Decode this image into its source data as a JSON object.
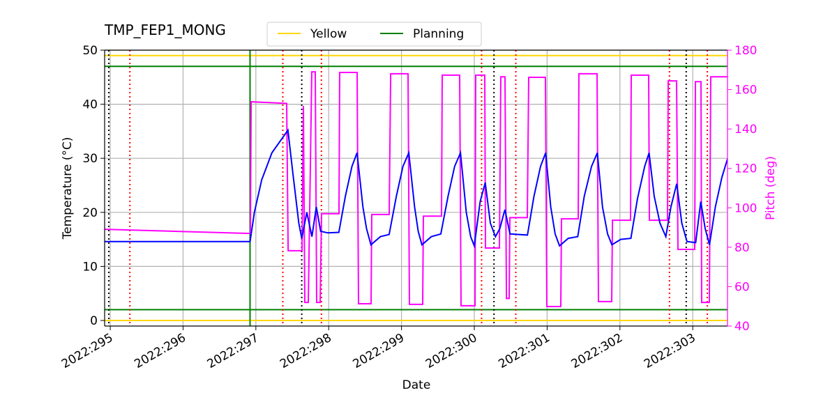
{
  "chart_data": {
    "type": "line",
    "title": "TMP_FEP1_MONG",
    "x_label": "Date",
    "y_label": "Temperature (°C)",
    "y2_label": "Pitch (deg)",
    "xlim": [
      294.923,
      303.477
    ],
    "xticks": [
      {
        "value": 295,
        "label": "2022:295"
      },
      {
        "value": 296,
        "label": "2022:296"
      },
      {
        "value": 297,
        "label": "2022:297"
      },
      {
        "value": 298,
        "label": "2022:298"
      },
      {
        "value": 299,
        "label": "2022:299"
      },
      {
        "value": 300,
        "label": "2022:300"
      },
      {
        "value": 301,
        "label": "2022:301"
      },
      {
        "value": 302,
        "label": "2022:302"
      },
      {
        "value": 303,
        "label": "2022:303"
      }
    ],
    "ylim": [
      -1.03,
      50
    ],
    "yticks": [
      0,
      10,
      20,
      30,
      40,
      50
    ],
    "y2lim": [
      40,
      180
    ],
    "y2ticks": [
      40,
      60,
      80,
      100,
      120,
      140,
      160,
      180
    ],
    "grid": true,
    "legend": "upper center",
    "series": [
      {
        "name": "Yellow",
        "color": "#ffd700",
        "values": [
          0,
          49
        ]
      },
      {
        "name": "Planning",
        "color": "#008000",
        "values": [
          2,
          47
        ]
      }
    ],
    "vlines": [
      {
        "color": "#008000",
        "style": "solid",
        "x": [
          296.92
        ]
      },
      {
        "color": "#000000",
        "style": "dotted",
        "x": [
          294.98,
          297.63,
          300.27,
          302.91
        ]
      },
      {
        "color": "#ff0000",
        "style": "dotted",
        "x": [
          295.27,
          297.37,
          297.9,
          300.1,
          300.57,
          302.68,
          303.2
        ]
      }
    ],
    "temperature": {
      "color": "#0000ff",
      "x": [
        294.92,
        296.92,
        296.98,
        297.08,
        297.22,
        297.44,
        297.51,
        297.59,
        297.63,
        297.7,
        297.77,
        297.83,
        297.89,
        297.99,
        298.14,
        298.23,
        298.32,
        298.39,
        298.47,
        298.52,
        298.58,
        298.71,
        298.83,
        298.93,
        299.02,
        299.1,
        299.18,
        299.23,
        299.28,
        299.41,
        299.54,
        299.64,
        299.73,
        299.81,
        299.89,
        299.95,
        300.0,
        300.08,
        300.15,
        300.22,
        300.29,
        300.35,
        300.42,
        300.49,
        300.73,
        300.82,
        300.91,
        300.98,
        301.05,
        301.11,
        301.17,
        301.29,
        301.42,
        301.51,
        301.61,
        301.69,
        301.76,
        301.83,
        301.89,
        302.01,
        302.15,
        302.24,
        302.34,
        302.4,
        302.47,
        302.55,
        302.63,
        302.7,
        302.78,
        302.85,
        302.92,
        303.04,
        303.11,
        303.17,
        303.23,
        303.31,
        303.4,
        303.48
      ],
      "values": [
        14.6,
        14.6,
        20,
        26,
        31,
        35.2,
        27,
        18,
        15.2,
        20,
        15.5,
        21,
        16.5,
        16.2,
        16.3,
        23,
        28.5,
        31,
        21,
        17,
        14,
        15.5,
        15.9,
        23,
        28.5,
        31,
        21,
        16.5,
        14,
        15.5,
        16,
        23,
        28.5,
        31,
        20,
        15.5,
        13.8,
        22,
        25.5,
        18,
        15.5,
        17,
        20.5,
        16,
        15.8,
        23,
        28.5,
        31,
        21,
        16,
        13.8,
        15.2,
        15.5,
        23,
        28.5,
        31,
        21,
        16,
        14,
        15,
        15.2,
        22.5,
        28.5,
        31,
        23,
        18,
        15.5,
        21,
        25.3,
        18,
        14.6,
        14.4,
        22,
        17,
        14,
        21,
        26.5,
        30
      ]
    },
    "pitch": {
      "color": "#ff00ff",
      "axis": "y2",
      "x": [
        294.923,
        296.925,
        296.935,
        297.423,
        297.443,
        297.634,
        297.653,
        297.672,
        297.72,
        297.768,
        297.816,
        297.835,
        297.883,
        297.902,
        298.142,
        298.151,
        298.391,
        298.41,
        298.582,
        298.592,
        298.831,
        298.851,
        299.09,
        299.109,
        299.291,
        299.301,
        299.55,
        299.559,
        299.799,
        299.818,
        300.01,
        300.019,
        300.144,
        300.153,
        300.345,
        300.364,
        300.421,
        300.441,
        300.479,
        300.488,
        300.728,
        300.747,
        300.977,
        300.996,
        301.188,
        301.197,
        301.427,
        301.437,
        301.686,
        301.705,
        301.887,
        301.897,
        302.146,
        302.155,
        302.395,
        302.404,
        302.653,
        302.663,
        302.778,
        302.797,
        303.027,
        303.036,
        303.113,
        303.123,
        303.228,
        303.247,
        303.477
      ],
      "values": [
        89.1,
        87.0,
        153.8,
        153.0,
        78.2,
        78.2,
        151.7,
        52,
        52,
        169,
        169,
        52,
        52,
        97,
        97,
        168.7,
        168.7,
        51.3,
        51.3,
        96.6,
        96.6,
        168,
        168,
        51,
        51,
        95.8,
        95.8,
        167.3,
        167.3,
        50.3,
        50.3,
        167.3,
        167.3,
        79.6,
        79.6,
        166.5,
        166.5,
        54,
        54,
        95,
        95,
        166.2,
        166.2,
        49.9,
        49.9,
        94.4,
        94.4,
        168,
        168,
        52.4,
        52.4,
        93.7,
        93.7,
        167.3,
        167.3,
        93.7,
        93.7,
        164.4,
        164.4,
        78.9,
        78.9,
        164,
        164,
        52,
        52,
        166.5,
        166.5
      ]
    }
  }
}
